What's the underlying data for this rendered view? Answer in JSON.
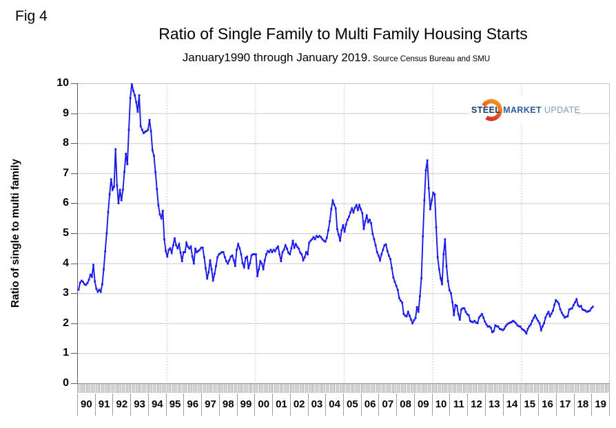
{
  "fig_label": "Fig 4",
  "header": {
    "title": "Ratio of Single Family to Multi Family Housing Starts",
    "subtitle": "January1990 through January 2019.",
    "subtitle_source": " Source Census Bureau and SMU"
  },
  "y_axis_title": "Ratio of single to multi family",
  "logo": {
    "steel": "STEEL",
    "market": "MARKET",
    "update": "UPDATE",
    "crescent_top_color": "#d63425",
    "crescent_bottom_color": "#f68b1f"
  },
  "colors": {
    "line": "#1a1ae8",
    "gridline": "#c9c9c9",
    "dotted_gridline": "#bdbdbd",
    "axis": "#595959",
    "background": "#ffffff"
  },
  "chart_data": {
    "type": "line",
    "title": "Ratio of Single Family to Multi Family Housing Starts",
    "subtitle": "January1990 through January 2019. Source Census Bureau and SMU",
    "ylabel": "Ratio of single to multi family",
    "x_start": "1990-01",
    "x_end": "2019-01",
    "frequency": "monthly",
    "axis_months_total": 360,
    "ylim": [
      0,
      10
    ],
    "y_ticks": [
      0,
      1,
      2,
      3,
      4,
      5,
      6,
      7,
      8,
      9,
      10
    ],
    "x_tick_labels": [
      "90",
      "91",
      "92",
      "93",
      "94",
      "95",
      "96",
      "97",
      "98",
      "99",
      "00",
      "01",
      "02",
      "03",
      "04",
      "05",
      "06",
      "07",
      "08",
      "09",
      "10",
      "11",
      "12",
      "13",
      "14",
      "15",
      "16",
      "17",
      "18",
      "19"
    ],
    "grid": {
      "horizontal": "solid",
      "vertical_month_lines": [
        60,
        120,
        180,
        240,
        300
      ]
    },
    "legend": "none",
    "series": [
      {
        "name": "Single family / multi family housing starts ratio",
        "color": "#1a1ae8",
        "values_by_year": [
          [
            3.12,
            3.35,
            3.42,
            3.38,
            3.3,
            3.28,
            3.34,
            3.45,
            3.62,
            3.55,
            3.95,
            3.4
          ],
          [
            3.15,
            3.05,
            3.12,
            3.05,
            3.3,
            3.8,
            4.4,
            5.0,
            5.7,
            6.3,
            6.8,
            6.45
          ],
          [
            6.55,
            7.8,
            6.6,
            6.0,
            6.45,
            6.1,
            6.45,
            7.05,
            7.65,
            7.3,
            8.45,
            9.5
          ],
          [
            10.0,
            9.75,
            9.6,
            9.37,
            9.05,
            9.6,
            8.57,
            8.45,
            8.34,
            8.38,
            8.41,
            8.45
          ],
          [
            8.78,
            8.4,
            7.77,
            7.58,
            7.04,
            6.47,
            5.93,
            5.63,
            5.5,
            5.75,
            4.8,
            4.41
          ],
          [
            4.22,
            4.45,
            4.5,
            4.35,
            4.6,
            4.83,
            4.6,
            4.5,
            4.64,
            4.35,
            4.07,
            4.37
          ],
          [
            4.37,
            4.68,
            4.55,
            4.49,
            4.56,
            4.22,
            3.99,
            4.49,
            4.37,
            4.41,
            4.45,
            4.52
          ],
          [
            4.52,
            4.2,
            3.83,
            3.49,
            3.7,
            4.1,
            3.8,
            3.42,
            3.65,
            3.91,
            4.2,
            4.3
          ],
          [
            4.33,
            4.37,
            4.37,
            4.2,
            4.07,
            3.99,
            4.1,
            4.22,
            4.26,
            4.1,
            3.91,
            4.45
          ],
          [
            4.64,
            4.5,
            4.3,
            4.0,
            3.87,
            4.18,
            4.22,
            3.83,
            4.0,
            4.26,
            4.3,
            4.3
          ],
          [
            4.3,
            3.57,
            3.8,
            4.07,
            3.99,
            3.8,
            4.1,
            4.3,
            4.41,
            4.37,
            4.45,
            4.37
          ],
          [
            4.45,
            4.4,
            4.5,
            4.56,
            4.3,
            4.07,
            4.37,
            4.45,
            4.6,
            4.49,
            4.35,
            4.3
          ],
          [
            4.5,
            4.75,
            4.52,
            4.64,
            4.55,
            4.49,
            4.35,
            4.3,
            4.1,
            4.2,
            4.37,
            4.3
          ],
          [
            4.68,
            4.75,
            4.8,
            4.87,
            4.8,
            4.91,
            4.87,
            4.91,
            4.87,
            4.8,
            4.75,
            4.72
          ],
          [
            4.85,
            5.1,
            5.4,
            5.8,
            6.09,
            5.95,
            5.83,
            5.14,
            4.95,
            4.75,
            5.1,
            5.27
          ],
          [
            5.05,
            5.3,
            5.45,
            5.55,
            5.7,
            5.83,
            5.7,
            5.85,
            5.94,
            5.78,
            5.94,
            5.8
          ],
          [
            5.67,
            5.14,
            5.4,
            5.6,
            5.37,
            5.45,
            5.33,
            4.98,
            4.8,
            4.6,
            4.37,
            4.25
          ],
          [
            4.1,
            4.3,
            4.45,
            4.6,
            4.63,
            4.41,
            4.25,
            4.14,
            3.84,
            3.53,
            3.38,
            3.25
          ],
          [
            3.11,
            2.84,
            2.75,
            2.69,
            2.31,
            2.25,
            2.23,
            2.38,
            2.25,
            2.12,
            2.0,
            2.1
          ],
          [
            2.17,
            2.54,
            2.38,
            2.9,
            3.5,
            4.9,
            6.1,
            7.1,
            7.43,
            6.5,
            5.8,
            6.1
          ],
          [
            6.35,
            6.3,
            5.2,
            4.2,
            3.8,
            3.5,
            3.3,
            4.3,
            4.8,
            3.9,
            3.4,
            3.1
          ],
          [
            3.0,
            2.7,
            2.27,
            2.61,
            2.58,
            2.3,
            2.12,
            2.46,
            2.5,
            2.5,
            2.38,
            2.3
          ],
          [
            2.27,
            2.08,
            2.05,
            2.04,
            2.08,
            2.02,
            2.0,
            2.19,
            2.25,
            2.31,
            2.19,
            2.05
          ],
          [
            1.96,
            1.89,
            1.9,
            1.85,
            1.7,
            1.74,
            1.93,
            1.9,
            1.89,
            1.81,
            1.8,
            1.77
          ],
          [
            1.81,
            1.9,
            1.96,
            2.0,
            2.02,
            2.04,
            2.08,
            2.05,
            2.0,
            1.93,
            1.9,
            1.89
          ],
          [
            1.81,
            1.78,
            1.74,
            1.66,
            1.81,
            1.9,
            1.96,
            2.08,
            2.18,
            2.27,
            2.16,
            2.08
          ],
          [
            2.0,
            1.77,
            1.9,
            2.0,
            2.19,
            2.3,
            2.38,
            2.23,
            2.32,
            2.42,
            2.61,
            2.77
          ],
          [
            2.72,
            2.65,
            2.46,
            2.35,
            2.27,
            2.19,
            2.22,
            2.23,
            2.46,
            2.48,
            2.5,
            2.61
          ],
          [
            2.7,
            2.8,
            2.6,
            2.55,
            2.58,
            2.46,
            2.44,
            2.42,
            2.38,
            2.4,
            2.42,
            2.5
          ],
          [
            2.55
          ]
        ]
      }
    ]
  }
}
